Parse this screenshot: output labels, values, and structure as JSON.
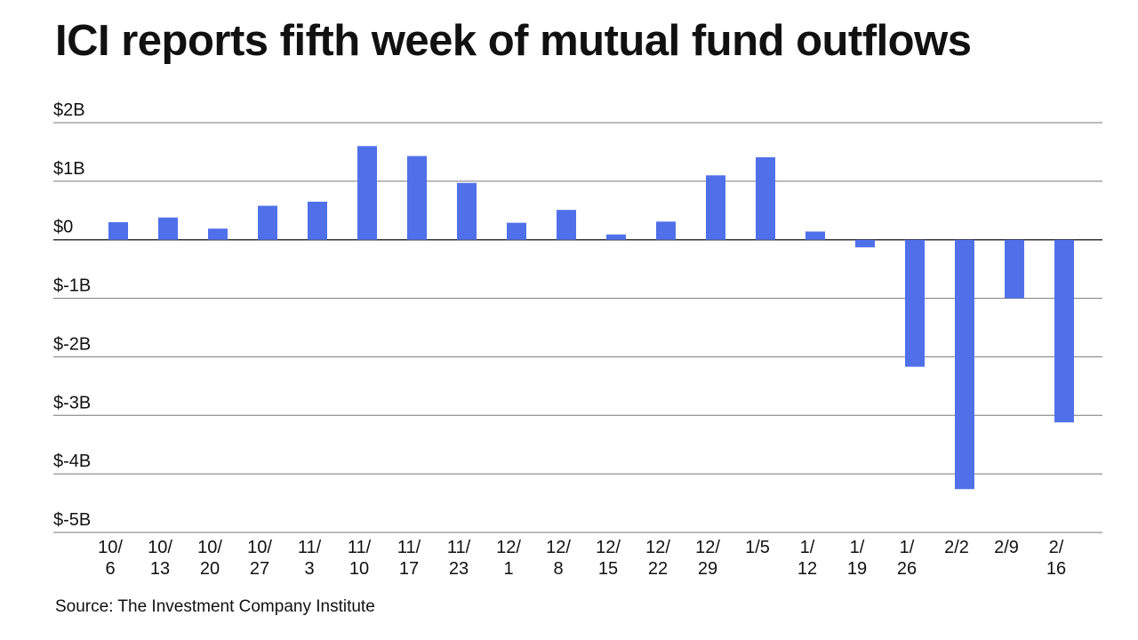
{
  "chart_data": {
    "type": "bar",
    "title": "ICI reports fifth week of mutual fund outflows",
    "source": "Source: The Investment Company Institute",
    "categories": [
      "10/6",
      "10/13",
      "10/20",
      "10/27",
      "11/3",
      "11/10",
      "11/17",
      "11/23",
      "12/1",
      "12/8",
      "12/15",
      "12/22",
      "12/29",
      "1/5",
      "1/12",
      "1/19",
      "1/26",
      "2/2",
      "2/9",
      "2/16"
    ],
    "values": [
      0.3,
      0.38,
      0.19,
      0.58,
      0.65,
      1.6,
      1.43,
      0.97,
      0.29,
      0.51,
      0.09,
      0.31,
      1.1,
      1.41,
      0.14,
      -0.13,
      -2.17,
      -4.26,
      -1.0,
      -3.12
    ],
    "unit": "billions USD",
    "ylim": [
      -5,
      2
    ],
    "yticks": [
      2,
      1,
      0,
      -1,
      -2,
      -3,
      -4,
      -5
    ],
    "ytick_labels": [
      "$2B",
      "$1B",
      "$0",
      "$-1B",
      "$-2B",
      "$-3B",
      "$-4B",
      "$-5B"
    ],
    "grid": true,
    "bar_color": "#5070EA"
  }
}
